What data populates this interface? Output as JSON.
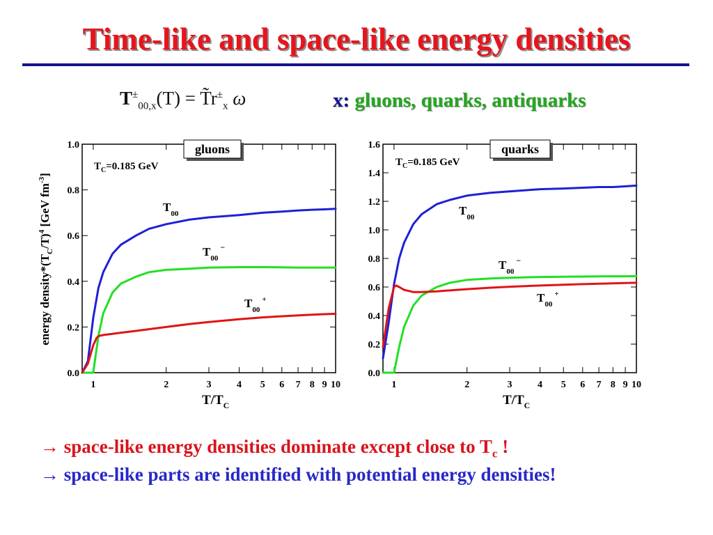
{
  "slide": {
    "title": "Time-like and space-like energy densities",
    "formula": {
      "lhs_base": "T",
      "lhs_sup": "±",
      "lhs_sub": "00,x",
      "lhs_arg": "(T)",
      "eq": "=",
      "rhs_base": "T̃r",
      "rhs_sup": "±",
      "rhs_sub": "x",
      "rhs_tail": "ω"
    },
    "x_line": {
      "x_label": "x:",
      "parts": "gluons, quarks, antiquarks"
    },
    "bullet1": {
      "arrow": "→",
      "text": "space-like energy densities dominate except close to T",
      "sub": "c",
      "tail": " !"
    },
    "bullet2": {
      "arrow": "→",
      "text": "space-like parts are identified with potential energy densities!"
    },
    "colors": {
      "title": "#e8141c",
      "rule": "#14148c",
      "blue": "#1f1fd6",
      "green": "#22e022",
      "red": "#e01414"
    }
  },
  "chart_data": [
    {
      "type": "line",
      "panel_label": "gluons",
      "annotation": "T_C=0.185 GeV",
      "x_scale": "log",
      "xlim": [
        0.9,
        10
      ],
      "ylim": [
        0.0,
        1.0
      ],
      "x_ticks": [
        "1",
        "2",
        "3",
        "4",
        "5",
        "6",
        "7",
        "8",
        "9",
        "10"
      ],
      "y_ticks": [
        "0.0",
        "0.2",
        "0.4",
        "0.6",
        "0.8",
        "1.0"
      ],
      "xlabel": "T/T_C",
      "ylabel": "energy density*(T_C/T)^4 [GeV fm^-3]",
      "series": [
        {
          "name": "T_00",
          "color": "#1f1fd6",
          "x": [
            0.9,
            0.95,
            1.0,
            1.05,
            1.1,
            1.2,
            1.3,
            1.5,
            1.7,
            2.0,
            2.5,
            3.0,
            4.0,
            5.0,
            6.0,
            7.0,
            8.0,
            9.0,
            10.0
          ],
          "y": [
            0.0,
            0.05,
            0.24,
            0.37,
            0.44,
            0.52,
            0.56,
            0.6,
            0.63,
            0.65,
            0.67,
            0.68,
            0.69,
            0.7,
            0.705,
            0.71,
            0.713,
            0.715,
            0.717
          ]
        },
        {
          "name": "T_00^-",
          "color": "#22e022",
          "x": [
            0.9,
            0.95,
            1.0,
            1.05,
            1.1,
            1.2,
            1.3,
            1.5,
            1.7,
            2.0,
            2.5,
            3.0,
            4.0,
            5.0,
            6.0,
            7.0,
            8.0,
            9.0,
            10.0
          ],
          "y": [
            0.0,
            0.0,
            0.0,
            0.16,
            0.26,
            0.35,
            0.39,
            0.42,
            0.44,
            0.45,
            0.455,
            0.46,
            0.462,
            0.462,
            0.461,
            0.46,
            0.46,
            0.46,
            0.46
          ]
        },
        {
          "name": "T_00^+",
          "color": "#e01414",
          "x": [
            0.9,
            0.95,
            1.0,
            1.03,
            1.05,
            1.1,
            1.2,
            1.3,
            1.5,
            2.0,
            2.5,
            3.0,
            4.0,
            5.0,
            6.0,
            7.0,
            8.0,
            9.0,
            10.0
          ],
          "y": [
            0.0,
            0.04,
            0.12,
            0.15,
            0.16,
            0.165,
            0.17,
            0.175,
            0.183,
            0.2,
            0.213,
            0.222,
            0.234,
            0.242,
            0.247,
            0.251,
            0.254,
            0.256,
            0.258
          ]
        }
      ]
    },
    {
      "type": "line",
      "panel_label": "quarks",
      "annotation": "T_C=0.185 GeV",
      "x_scale": "log",
      "xlim": [
        0.9,
        10
      ],
      "ylim": [
        0.0,
        1.6
      ],
      "x_ticks": [
        "1",
        "2",
        "3",
        "4",
        "5",
        "6",
        "7",
        "8",
        "9",
        "10"
      ],
      "y_ticks": [
        "0.0",
        "0.2",
        "0.4",
        "0.6",
        "0.8",
        "1.0",
        "1.2",
        "1.4",
        "1.6"
      ],
      "xlabel": "T/T_C",
      "ylabel": "",
      "series": [
        {
          "name": "T_00",
          "color": "#1f1fd6",
          "x": [
            0.9,
            0.95,
            1.0,
            1.05,
            1.1,
            1.2,
            1.3,
            1.5,
            1.7,
            2.0,
            2.5,
            3.0,
            4.0,
            5.0,
            6.0,
            7.0,
            8.0,
            9.0,
            10.0
          ],
          "y": [
            0.1,
            0.35,
            0.62,
            0.8,
            0.91,
            1.04,
            1.11,
            1.18,
            1.21,
            1.24,
            1.26,
            1.27,
            1.285,
            1.29,
            1.295,
            1.3,
            1.3,
            1.305,
            1.31
          ]
        },
        {
          "name": "T_00^-",
          "color": "#22e022",
          "x": [
            0.9,
            0.95,
            1.0,
            1.05,
            1.1,
            1.2,
            1.3,
            1.5,
            1.7,
            2.0,
            2.5,
            3.0,
            4.0,
            5.0,
            6.0,
            7.0,
            8.0,
            9.0,
            10.0
          ],
          "y": [
            0.0,
            0.0,
            0.0,
            0.18,
            0.32,
            0.47,
            0.54,
            0.6,
            0.63,
            0.65,
            0.66,
            0.665,
            0.67,
            0.672,
            0.673,
            0.674,
            0.675,
            0.675,
            0.676
          ]
        },
        {
          "name": "T_00^+",
          "color": "#e01414",
          "x": [
            0.9,
            0.95,
            1.0,
            1.02,
            1.05,
            1.1,
            1.2,
            1.3,
            1.5,
            2.0,
            2.5,
            3.0,
            4.0,
            5.0,
            6.0,
            7.0,
            8.0,
            9.0,
            10.0
          ],
          "y": [
            0.18,
            0.45,
            0.6,
            0.61,
            0.6,
            0.58,
            0.565,
            0.565,
            0.57,
            0.585,
            0.595,
            0.602,
            0.61,
            0.616,
            0.62,
            0.623,
            0.626,
            0.628,
            0.63
          ]
        }
      ]
    }
  ]
}
